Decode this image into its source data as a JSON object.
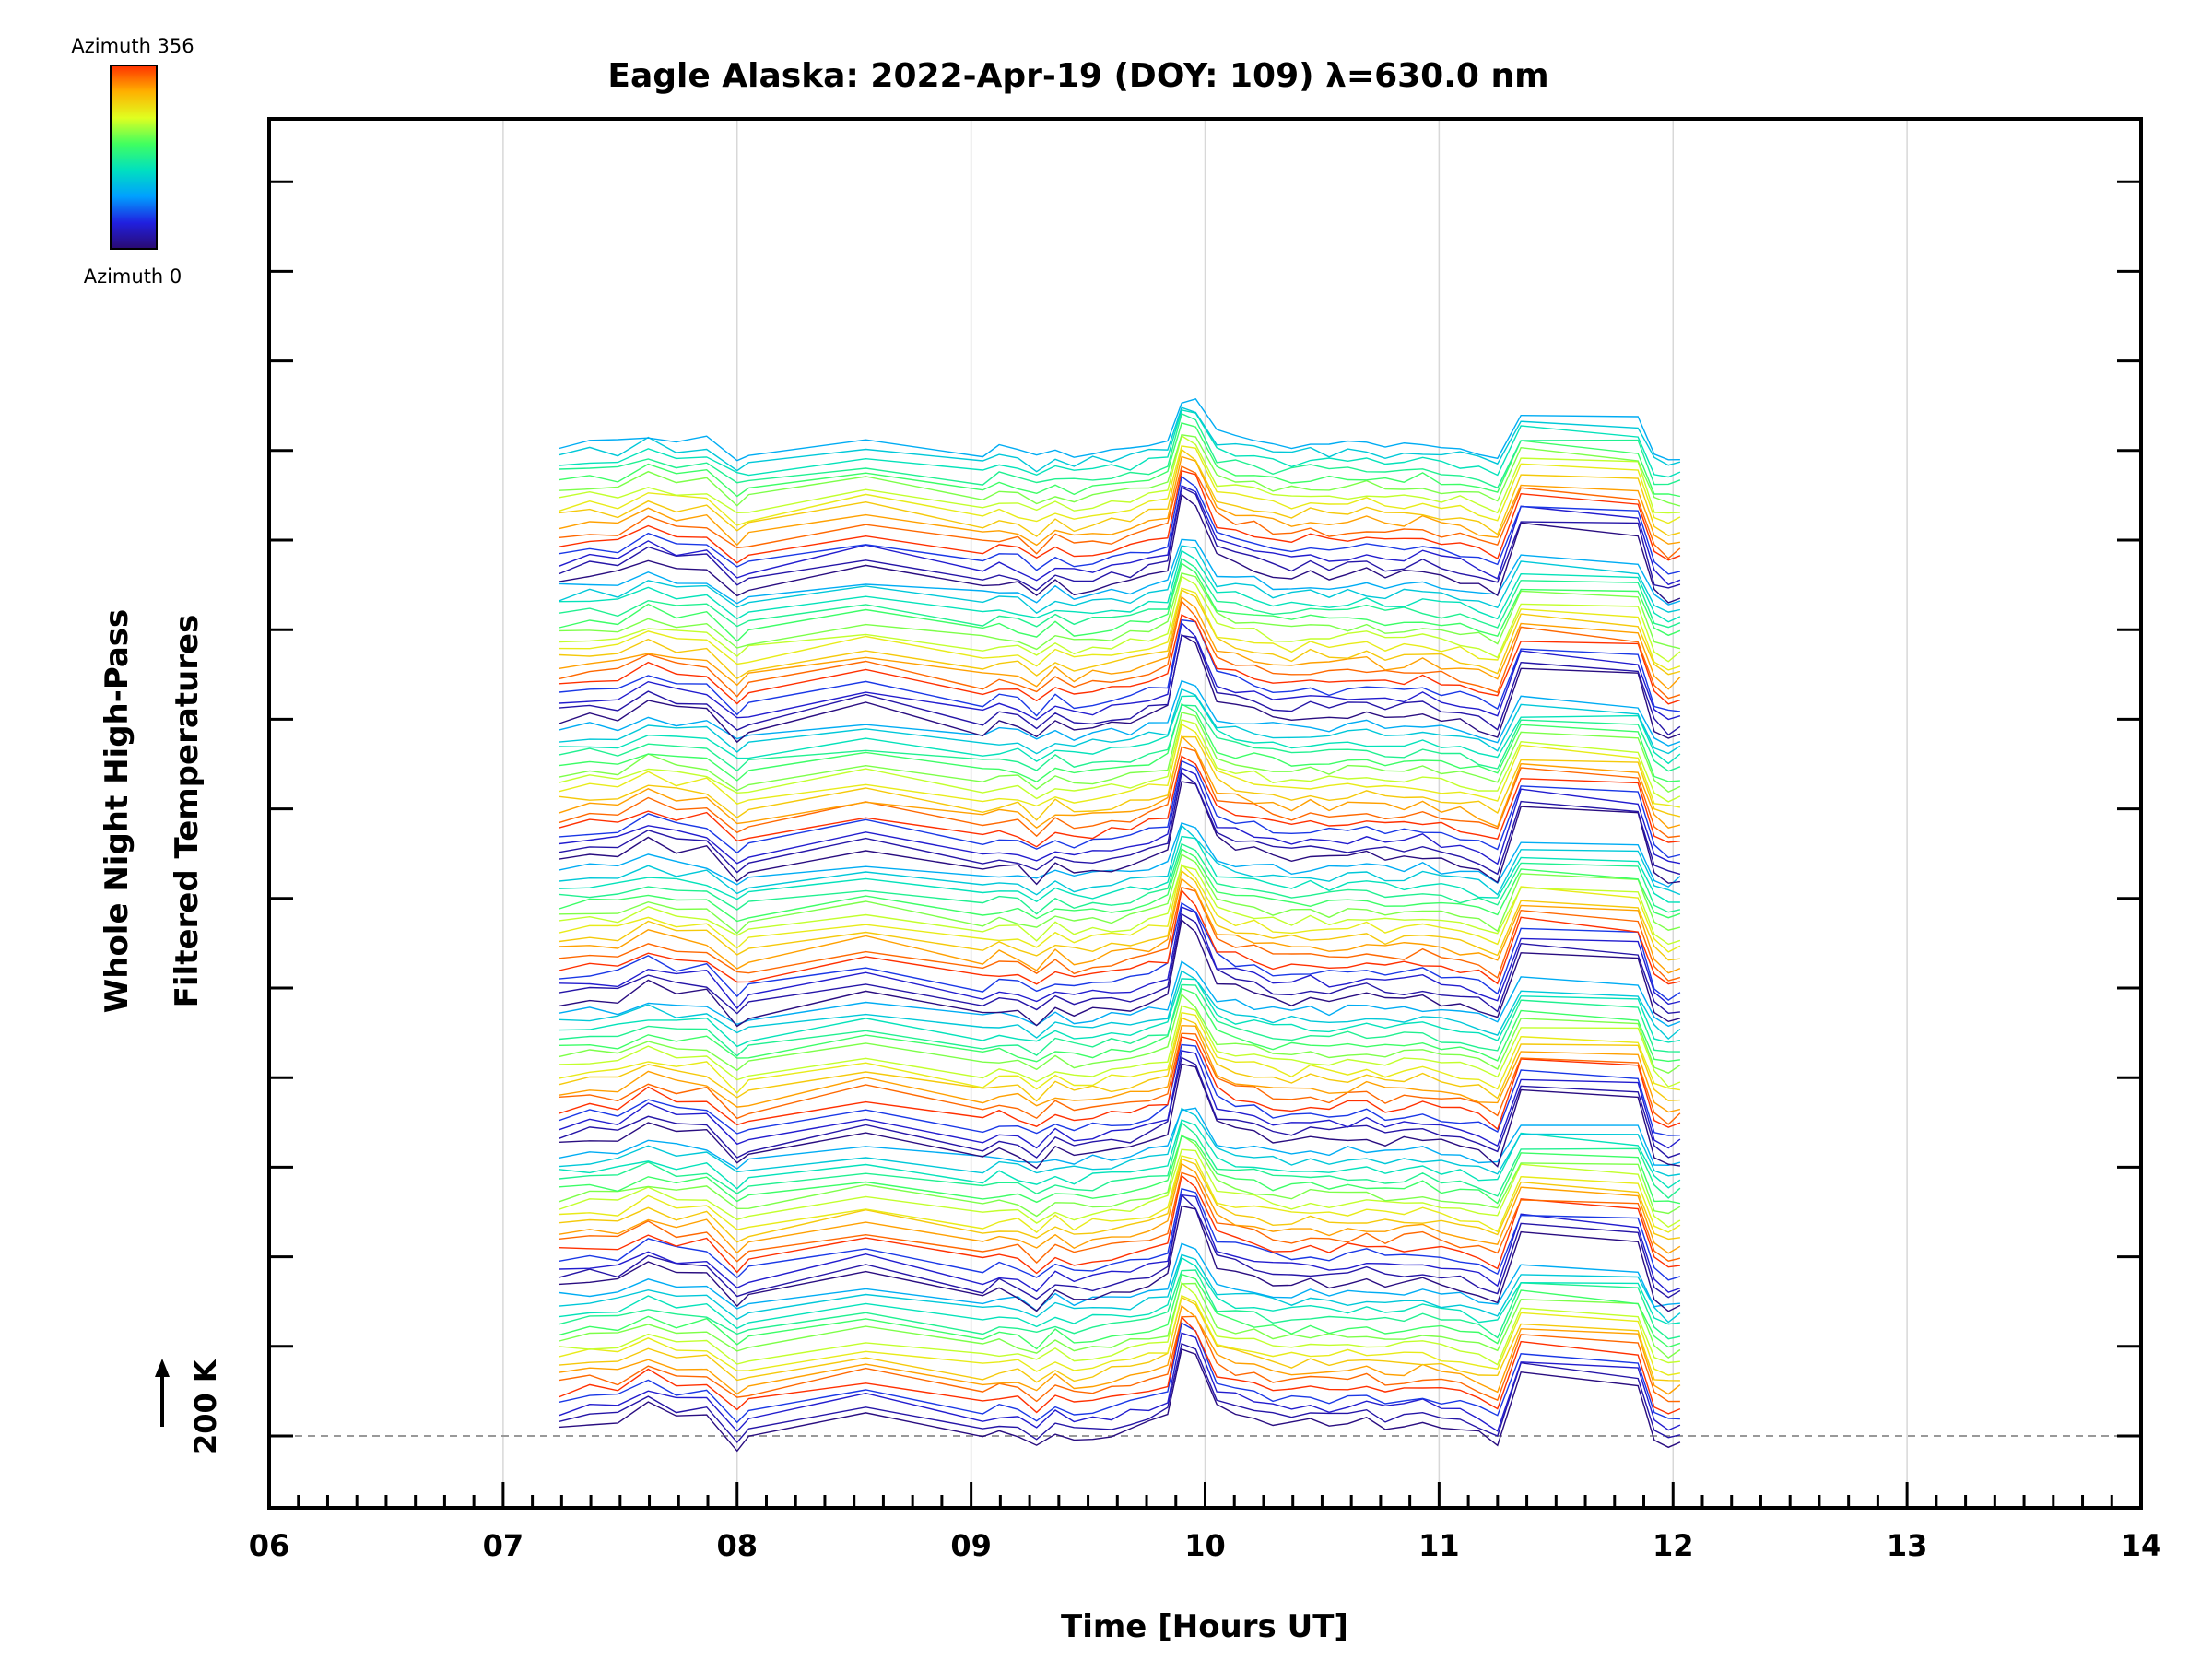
{
  "chart_data": {
    "type": "line",
    "title": "Eagle Alaska: 2022-Apr-19 (DOY: 109) λ=630.0 nm",
    "xlabel": "Time [Hours UT]",
    "ylabel_line1": "Whole Night High-Pass",
    "ylabel_line2": "Filtered Temperatures",
    "xlim": [
      6,
      14
    ],
    "x_tick_labels": [
      "06",
      "07",
      "08",
      "09",
      "10",
      "11",
      "12",
      "13",
      "14"
    ],
    "y_scale_label": "200 K",
    "grid": true,
    "colorbar": {
      "label_top": "Azimuth 356",
      "label_bottom": "Azimuth 0",
      "colormap": "rainbow",
      "range": [
        0,
        356
      ]
    },
    "stack_groups": 7,
    "traces_per_group": 16,
    "sample_times": [
      7.24,
      7.37,
      7.49,
      7.62,
      7.74,
      7.87,
      8.0,
      8.05,
      8.55,
      9.05,
      9.12,
      9.2,
      9.28,
      9.36,
      9.44,
      9.52,
      9.6,
      9.68,
      9.76,
      9.84,
      9.9,
      9.96,
      10.05,
      10.13,
      10.21,
      10.29,
      10.37,
      10.45,
      10.53,
      10.61,
      10.69,
      10.77,
      10.85,
      10.93,
      11.01,
      11.09,
      11.17,
      11.25,
      11.35,
      11.85,
      11.92,
      11.98,
      12.03
    ],
    "common_profile_K": [
      0,
      10,
      8,
      40,
      20,
      22,
      -35,
      -20,
      25,
      -20,
      -8,
      -12,
      -35,
      -5,
      -22,
      -15,
      -10,
      -5,
      8,
      20,
      150,
      135,
      40,
      28,
      22,
      8,
      5,
      12,
      6,
      10,
      15,
      4,
      9,
      14,
      3,
      -2,
      -12,
      -30,
      98,
      82,
      -20,
      -40,
      -30
    ],
    "colors": {
      "rainbow_stops": [
        "#2a0a70",
        "#2020e0",
        "#00a0ff",
        "#00e0c0",
        "#40ff60",
        "#e0ff20",
        "#ffb000",
        "#ff3000"
      ],
      "grid": "#d8d8d8",
      "reference_line": "#999999",
      "axes": "#000000"
    }
  }
}
